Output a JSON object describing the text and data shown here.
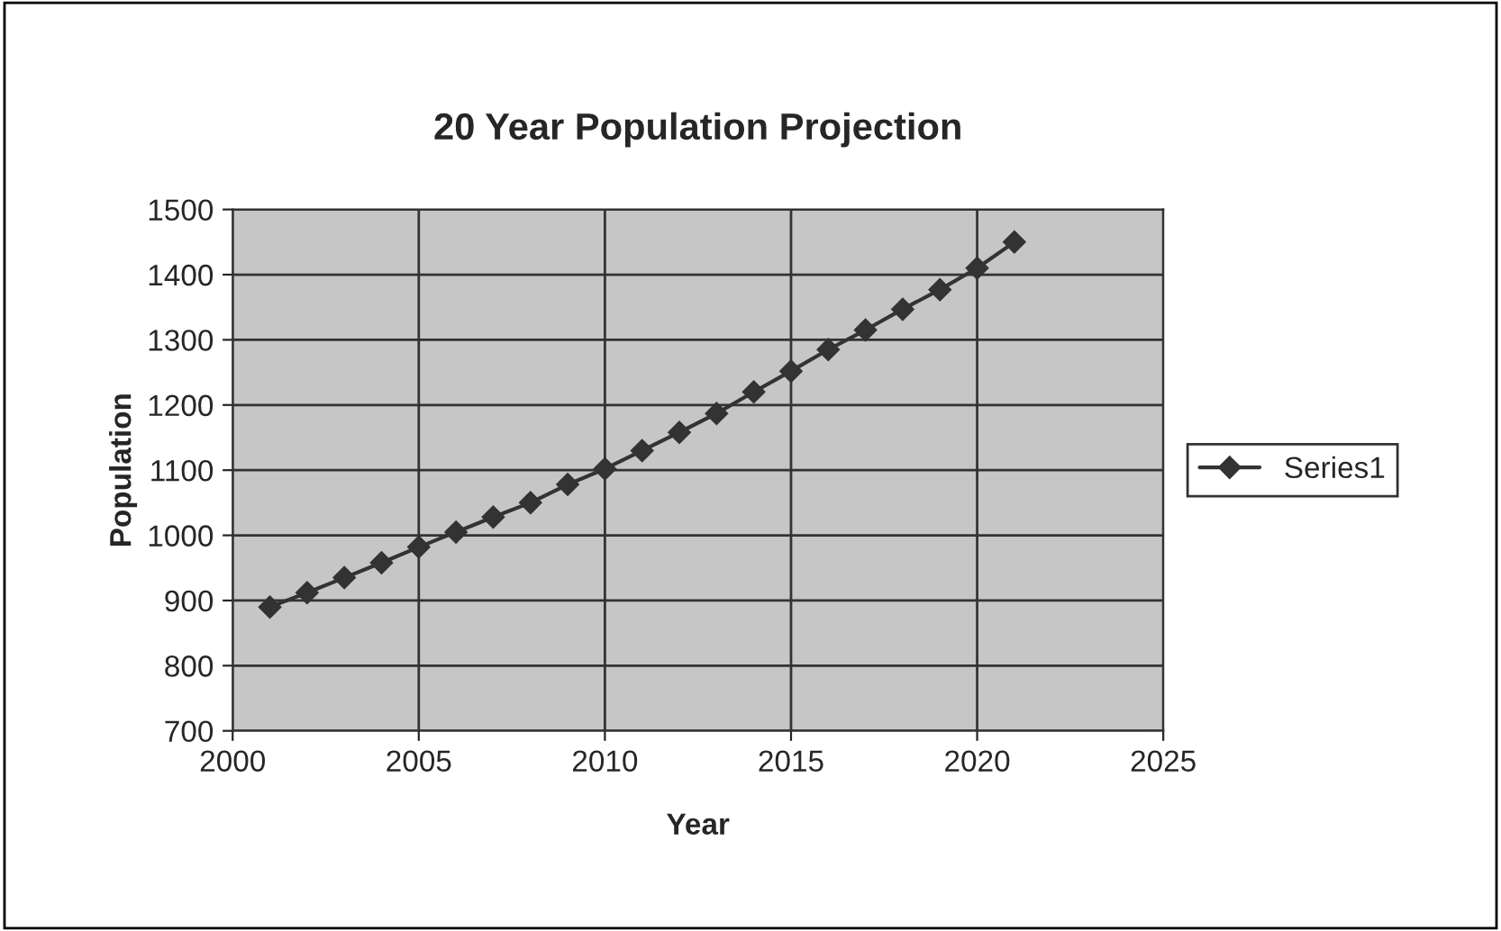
{
  "chart_data": {
    "type": "line",
    "title": "20 Year Population Projection",
    "xlabel": "Year",
    "ylabel": "Population",
    "x": [
      2001,
      2002,
      2003,
      2004,
      2005,
      2006,
      2007,
      2008,
      2009,
      2010,
      2011,
      2012,
      2013,
      2014,
      2015,
      2016,
      2017,
      2018,
      2019,
      2020,
      2021
    ],
    "series": [
      {
        "name": "Series1",
        "color": "#333333",
        "values": [
          890,
          912,
          935,
          958,
          982,
          1005,
          1028,
          1050,
          1078,
          1102,
          1130,
          1158,
          1187,
          1220,
          1252,
          1285,
          1315,
          1347,
          1377,
          1410,
          1450
        ]
      }
    ],
    "xlim": [
      2000,
      2025
    ],
    "xticks": [
      2000,
      2005,
      2010,
      2015,
      2020,
      2025
    ],
    "ylim": [
      700,
      1500
    ],
    "yticks": [
      700,
      800,
      900,
      1000,
      1100,
      1200,
      1300,
      1400,
      1500
    ],
    "grid": true,
    "legend": "right",
    "marker": "diamond",
    "line_style": "solid"
  }
}
